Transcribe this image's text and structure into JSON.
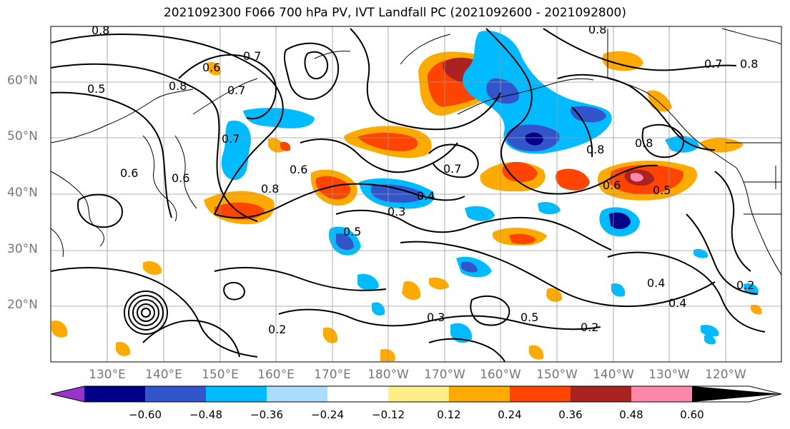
{
  "title": "2021092300 F066 700 hPa PV, IVT Landfall PC (2021092600 - 2021092800)",
  "map": {
    "lat_labels": [
      "60°N",
      "50°N",
      "40°N",
      "30°N",
      "20°N"
    ],
    "lon_labels": [
      "130°E",
      "140°E",
      "150°E",
      "160°E",
      "170°E",
      "180°W",
      "170°W",
      "160°W",
      "150°W",
      "140°W",
      "130°W",
      "120°W"
    ],
    "contour_labels": [
      "0.8",
      "0.7",
      "0.6",
      "0.7",
      "0.5",
      "0.8",
      "0.7",
      "0.6",
      "0.6",
      "0.8",
      "0.6",
      "0.7",
      "0.4",
      "0.3",
      "0.5",
      "0.8",
      "0.8",
      "0.8",
      "0.6",
      "0.5",
      "0.4",
      "0.4",
      "0.2",
      "0.2",
      "0.3",
      "0.2",
      "0.5",
      "0.8",
      "0.7"
    ]
  },
  "colorbar": {
    "ticks": [
      "−0.60",
      "−0.48",
      "−0.36",
      "−0.24",
      "−0.12",
      "0.12",
      "0.24",
      "0.36",
      "0.48",
      "0.60"
    ],
    "colors": [
      "#9933cc",
      "#000088",
      "#3355cc",
      "#00bbff",
      "#aaddff",
      "#ffffff",
      "#ffee88",
      "#ffaa00",
      "#ff4400",
      "#aa2222",
      "#ff88aa"
    ]
  }
}
